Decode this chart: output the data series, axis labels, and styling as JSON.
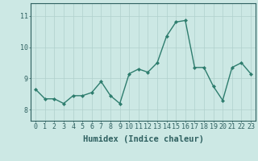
{
  "xlabel": "Humidex (Indice chaleur)",
  "x": [
    0,
    1,
    2,
    3,
    4,
    5,
    6,
    7,
    8,
    9,
    10,
    11,
    12,
    13,
    14,
    15,
    16,
    17,
    18,
    19,
    20,
    21,
    22,
    23
  ],
  "y": [
    8.65,
    8.35,
    8.35,
    8.2,
    8.45,
    8.45,
    8.55,
    8.9,
    8.45,
    8.2,
    9.15,
    9.3,
    9.2,
    9.5,
    10.35,
    10.8,
    10.85,
    9.35,
    9.35,
    8.75,
    8.3,
    9.35,
    9.5,
    9.15
  ],
  "line_color": "#2e7d6e",
  "marker": "D",
  "marker_size": 2.0,
  "line_width": 1.0,
  "bg_color": "#cce8e4",
  "grid_color": "#b0d0cc",
  "ylim": [
    7.65,
    11.4
  ],
  "yticks": [
    8,
    9,
    10,
    11
  ],
  "xlim": [
    -0.5,
    23.5
  ],
  "xlabel_fontsize": 7.5,
  "tick_fontsize": 6.0
}
